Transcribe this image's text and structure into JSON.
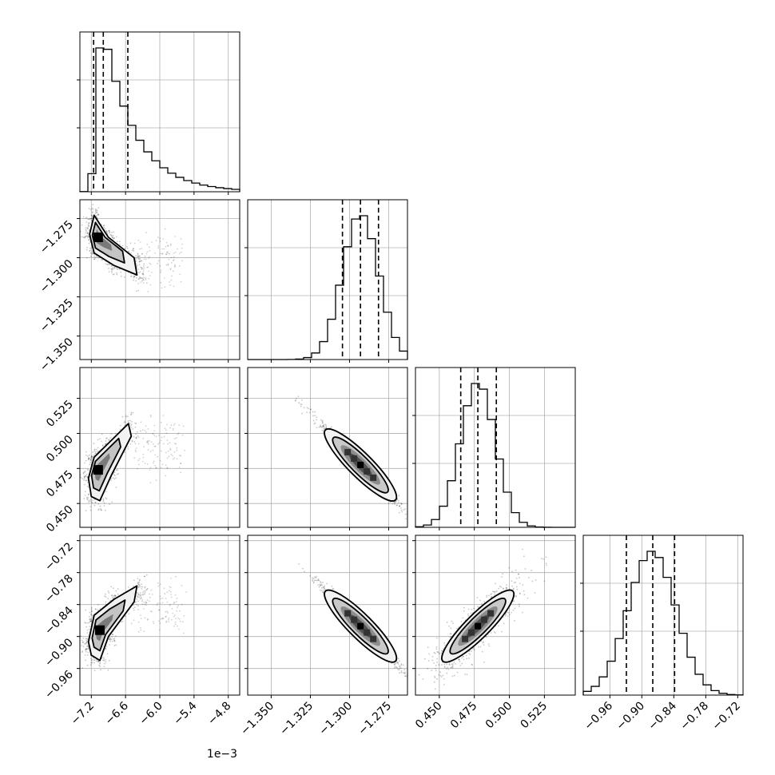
{
  "chart_data": {
    "type": "corner",
    "grid": true,
    "quantile_lines": "dashed",
    "parameters": [
      {
        "range": [
          -7.4,
          -4.6
        ],
        "ticks": [
          -7.2,
          -6.6,
          -6.0,
          -5.4,
          -4.8
        ],
        "tick_labels": [
          "−7.2",
          "−6.6",
          "−6.0",
          "−5.4",
          "−4.8"
        ],
        "offset_label": "1e−3",
        "quantiles": [
          -7.16,
          -6.99,
          -6.56
        ],
        "mode": -7.0,
        "sigma": 0.35,
        "skew": true
      },
      {
        "range": [
          -1.365,
          -1.263
        ],
        "ticks": [
          -1.35,
          -1.325,
          -1.3,
          -1.275
        ],
        "tick_labels": [
          "−1.350",
          "−1.325",
          "−1.300",
          "−1.275"
        ],
        "quantiles": [
          -1.3045,
          -1.293,
          -1.2815
        ],
        "mode": -1.293,
        "sigma": 0.0115
      },
      {
        "range": [
          0.433,
          0.547
        ],
        "ticks": [
          0.45,
          0.475,
          0.5,
          0.525
        ],
        "tick_labels": [
          "0.450",
          "0.475",
          "0.500",
          "0.525"
        ],
        "quantiles": [
          0.4653,
          0.4775,
          0.4907
        ],
        "mode": 0.4775,
        "sigma": 0.0125
      },
      {
        "range": [
          -1.01,
          -0.71
        ],
        "ticks": [
          -0.96,
          -0.9,
          -0.84,
          -0.78,
          -0.72
        ],
        "tick_labels": [
          "−0.96",
          "−0.90",
          "−0.84",
          "−0.78",
          "−0.72"
        ],
        "quantiles": [
          -0.929,
          -0.8795,
          -0.8385
        ],
        "mode": -0.881,
        "sigma": 0.045
      }
    ],
    "pairs": [
      {
        "row": 1,
        "col": 0,
        "shape": "curved",
        "center": [
          -7.08,
          -1.287
        ],
        "contours": [
          [
            -7.23,
            -1.285
          ],
          [
            -7.15,
            -1.273
          ],
          [
            -6.9,
            -1.287
          ],
          [
            -6.45,
            -1.3
          ],
          [
            -6.4,
            -1.311
          ],
          [
            -6.8,
            -1.305
          ],
          [
            -7.15,
            -1.297
          ]
        ]
      },
      {
        "row": 2,
        "col": 0,
        "shape": "curved",
        "center": [
          -7.08,
          0.474
        ],
        "contours": [
          [
            -7.25,
            0.468
          ],
          [
            -7.15,
            0.483
          ],
          [
            -6.9,
            0.493
          ],
          [
            -6.55,
            0.507
          ],
          [
            -6.5,
            0.498
          ],
          [
            -6.85,
            0.47
          ],
          [
            -7.05,
            0.452
          ],
          [
            -7.2,
            0.455
          ]
        ]
      },
      {
        "row": 3,
        "col": 0,
        "shape": "curved",
        "center": [
          -7.05,
          -0.888
        ],
        "contours": [
          [
            -7.25,
            -0.91
          ],
          [
            -7.15,
            -0.86
          ],
          [
            -6.8,
            -0.83
          ],
          [
            -6.4,
            -0.805
          ],
          [
            -6.45,
            -0.835
          ],
          [
            -6.9,
            -0.9
          ],
          [
            -7.05,
            -0.945
          ],
          [
            -7.2,
            -0.935
          ]
        ]
      },
      {
        "row": 2,
        "col": 1,
        "shape": "ellipse",
        "corr": -0.95,
        "center": [
          -1.293,
          0.4775
        ]
      },
      {
        "row": 3,
        "col": 1,
        "shape": "ellipse",
        "corr": -0.85,
        "center": [
          -1.293,
          -0.8805
        ]
      },
      {
        "row": 3,
        "col": 2,
        "shape": "ellipse",
        "corr": 0.9,
        "center": [
          0.4775,
          -0.8805
        ]
      }
    ]
  }
}
